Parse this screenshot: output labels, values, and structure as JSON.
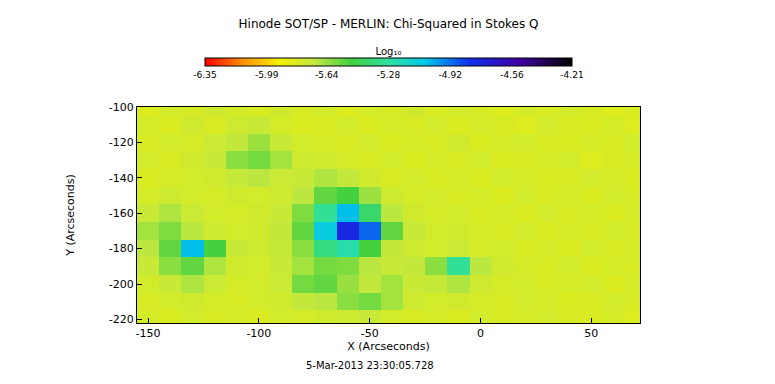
{
  "chart_data": {
    "type": "heatmap",
    "title": "Hinode SOT/SP - MERLIN: Chi-Squared in Stokes Q",
    "x_label": "X (Arcseconds)",
    "y_label": "Y (Arcseconds)",
    "annotation": "5-Mar-2013 23:30:05.728",
    "xlim": [
      -155,
      72
    ],
    "ylim": [
      -222,
      -100
    ],
    "xticks": [
      -150,
      -100,
      -50,
      0,
      50
    ],
    "yticks": [
      -220,
      -200,
      -180,
      -160,
      -140,
      -120,
      -100
    ],
    "x": [
      -150,
      -140,
      -130,
      -120,
      -110,
      -100,
      -90,
      -80,
      -70,
      -60,
      -50,
      -40,
      -30,
      -20,
      -10,
      0,
      10,
      20,
      30,
      40,
      50,
      60,
      70
    ],
    "y": [
      -100,
      -110,
      -120,
      -130,
      -140,
      -150,
      -160,
      -170,
      -180,
      -190,
      -200,
      -210,
      -220
    ],
    "z": [
      [
        -5.82,
        -5.78,
        -5.8,
        -5.76,
        -5.79,
        -5.81,
        -5.77,
        -5.8,
        -5.78,
        -5.82,
        -5.79,
        -5.8,
        -5.77,
        -5.81,
        -5.78,
        -5.8,
        -5.82,
        -5.79,
        -5.81,
        -5.78,
        -5.8,
        -5.83,
        -5.81
      ],
      [
        -5.79,
        -5.81,
        -5.77,
        -5.8,
        -5.76,
        -5.74,
        -5.79,
        -5.81,
        -5.8,
        -5.78,
        -5.81,
        -5.79,
        -5.8,
        -5.78,
        -5.81,
        -5.79,
        -5.8,
        -5.82,
        -5.78,
        -5.8,
        -5.81,
        -5.79,
        -5.82
      ],
      [
        -5.8,
        -5.78,
        -5.79,
        -5.75,
        -5.72,
        -5.65,
        -5.74,
        -5.78,
        -5.79,
        -5.8,
        -5.78,
        -5.81,
        -5.79,
        -5.8,
        -5.77,
        -5.81,
        -5.79,
        -5.78,
        -5.8,
        -5.81,
        -5.79,
        -5.8,
        -5.78
      ],
      [
        -5.78,
        -5.8,
        -5.77,
        -5.74,
        -5.62,
        -5.58,
        -5.66,
        -5.76,
        -5.77,
        -5.79,
        -5.8,
        -5.78,
        -5.81,
        -5.79,
        -5.8,
        -5.78,
        -5.81,
        -5.8,
        -5.79,
        -5.78,
        -5.82,
        -5.8,
        -5.79
      ],
      [
        -5.81,
        -5.79,
        -5.78,
        -5.77,
        -5.73,
        -5.7,
        -5.75,
        -5.74,
        -5.68,
        -5.72,
        -5.77,
        -5.8,
        -5.78,
        -5.8,
        -5.79,
        -5.81,
        -5.78,
        -5.79,
        -5.81,
        -5.8,
        -5.78,
        -5.79,
        -5.81
      ],
      [
        -5.79,
        -5.76,
        -5.78,
        -5.79,
        -5.77,
        -5.78,
        -5.76,
        -5.7,
        -5.55,
        -5.5,
        -5.65,
        -5.76,
        -5.79,
        -5.78,
        -5.8,
        -5.79,
        -5.81,
        -5.78,
        -5.8,
        -5.79,
        -5.81,
        -5.78,
        -5.8
      ],
      [
        -5.74,
        -5.68,
        -5.75,
        -5.78,
        -5.79,
        -5.77,
        -5.74,
        -5.6,
        -5.3,
        -5.05,
        -5.4,
        -5.7,
        -5.77,
        -5.79,
        -5.78,
        -5.8,
        -5.79,
        -5.81,
        -5.78,
        -5.8,
        -5.79,
        -5.81,
        -5.79
      ],
      [
        -5.66,
        -5.6,
        -5.7,
        -5.76,
        -5.78,
        -5.77,
        -5.72,
        -5.55,
        -5.1,
        -4.75,
        -4.9,
        -5.55,
        -5.74,
        -5.78,
        -5.77,
        -5.79,
        -5.8,
        -5.78,
        -5.81,
        -5.79,
        -5.8,
        -5.78,
        -5.8
      ],
      [
        -5.7,
        -5.55,
        -5.05,
        -5.5,
        -5.74,
        -5.76,
        -5.73,
        -5.62,
        -5.35,
        -5.25,
        -5.5,
        -5.72,
        -5.76,
        -5.78,
        -5.75,
        -5.79,
        -5.78,
        -5.8,
        -5.79,
        -5.81,
        -5.78,
        -5.8,
        -5.79
      ],
      [
        -5.74,
        -5.62,
        -5.55,
        -5.68,
        -5.77,
        -5.78,
        -5.74,
        -5.66,
        -5.58,
        -5.6,
        -5.7,
        -5.74,
        -5.72,
        -5.62,
        -5.3,
        -5.7,
        -5.77,
        -5.79,
        -5.8,
        -5.78,
        -5.81,
        -5.79,
        -5.8
      ],
      [
        -5.78,
        -5.74,
        -5.68,
        -5.75,
        -5.79,
        -5.78,
        -5.75,
        -5.58,
        -5.55,
        -5.64,
        -5.72,
        -5.66,
        -5.74,
        -5.73,
        -5.68,
        -5.76,
        -5.79,
        -5.78,
        -5.8,
        -5.79,
        -5.78,
        -5.81,
        -5.79
      ],
      [
        -5.8,
        -5.78,
        -5.77,
        -5.79,
        -5.8,
        -5.78,
        -5.77,
        -5.72,
        -5.7,
        -5.62,
        -5.58,
        -5.66,
        -5.76,
        -5.78,
        -5.77,
        -5.79,
        -5.8,
        -5.78,
        -5.79,
        -5.81,
        -5.8,
        -5.78,
        -5.8
      ],
      [
        -5.79,
        -5.81,
        -5.78,
        -5.8,
        -5.79,
        -5.81,
        -5.78,
        -5.79,
        -5.77,
        -5.76,
        -5.74,
        -5.78,
        -5.8,
        -5.79,
        -5.81,
        -5.78,
        -5.8,
        -5.79,
        -5.78,
        -5.8,
        -5.81,
        -5.79,
        -5.82
      ]
    ],
    "colorbar_title": "Log₁₀",
    "colorbar_range": [
      -6.35,
      -4.21
    ],
    "colorbar_ticks": [
      -6.35,
      -5.99,
      -5.64,
      -5.28,
      -4.92,
      -4.56,
      -4.21
    ]
  }
}
